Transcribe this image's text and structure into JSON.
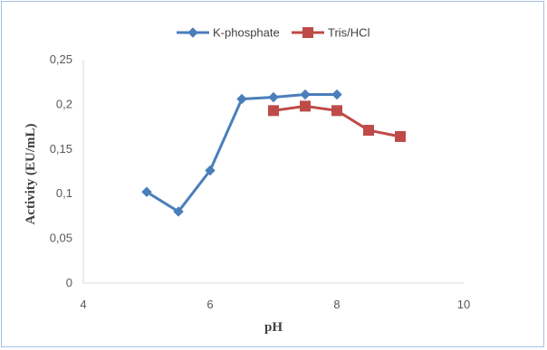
{
  "chart_data": {
    "type": "line",
    "title": "",
    "xlabel": "pH",
    "ylabel": "Activity (EU/mL)",
    "xlim": [
      4,
      10
    ],
    "ylim": [
      0,
      0.25
    ],
    "x_ticks": [
      4,
      6,
      8,
      10
    ],
    "x_tick_labels": [
      "4",
      "6",
      "8",
      "10"
    ],
    "y_ticks": [
      0,
      0.05,
      0.1,
      0.15,
      0.2,
      0.25
    ],
    "y_tick_labels": [
      "0",
      "0,05",
      "0,1",
      "0,15",
      "0,2",
      "0,25"
    ],
    "grid": false,
    "legend_position": "top",
    "series": [
      {
        "name": "K-phosphate",
        "color": "#4a7ebb",
        "marker": "diamond",
        "x": [
          5,
          5.5,
          6,
          6.5,
          7,
          7.5,
          8
        ],
        "y": [
          0.102,
          0.08,
          0.126,
          0.206,
          0.208,
          0.211,
          0.211
        ]
      },
      {
        "name": "Tris/HCl",
        "color": "#be4b48",
        "marker": "square",
        "x": [
          7,
          7.5,
          8,
          8.5,
          9
        ],
        "y": [
          0.193,
          0.198,
          0.193,
          0.171,
          0.164
        ]
      }
    ]
  }
}
